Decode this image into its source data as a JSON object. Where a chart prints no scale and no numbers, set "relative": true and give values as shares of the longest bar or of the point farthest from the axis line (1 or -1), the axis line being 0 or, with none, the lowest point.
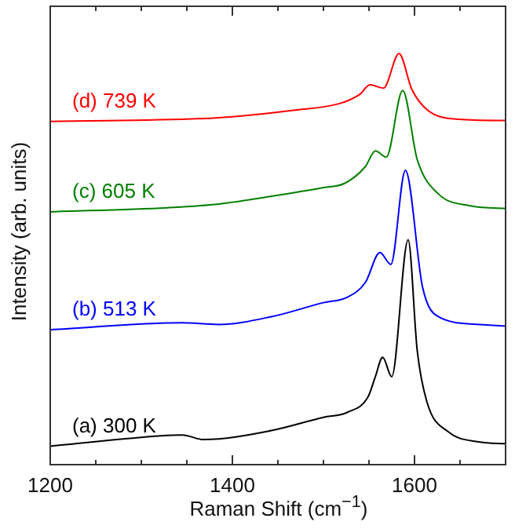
{
  "chart_data": {
    "type": "line",
    "relative": true,
    "xlabel": "Raman Shift (cm$^{−1}$)",
    "ylabel": "Intensity (arb. units)",
    "xlim": [
      1200,
      1700
    ],
    "xticks": [
      1200,
      {
        "value": 1250,
        "label": null
      },
      {
        "value": 1300,
        "label": null
      },
      {
        "value": 1350,
        "label": null
      },
      1400,
      {
        "value": 1450,
        "label": null
      },
      {
        "value": 1500,
        "label": null
      },
      {
        "value": 1550,
        "label": null
      },
      1600,
      {
        "value": 1650,
        "label": null
      },
      {
        "value": 1700,
        "label": null
      }
    ],
    "grid": false,
    "legend": false,
    "marker": "none",
    "line_style": "solid",
    "x": [
      1200,
      1322,
      1345,
      1368,
      1443,
      1500,
      1526,
      1549,
      1557,
      1565,
      1575,
      1593,
      1603,
      1614,
      1637,
      1672,
      1700
    ],
    "series": [
      {
        "name": "(a) 300 K",
        "color": "#000000",
        "values": [
          0.045,
          0.07,
          0.072,
          0.061,
          0.083,
          0.115,
          0.127,
          0.165,
          0.214,
          0.261,
          0.214,
          0.547,
          0.277,
          0.15,
          0.08,
          0.055,
          0.051
        ]
      },
      {
        "name": "(b) 513 K",
        "color": "#0000ff",
        "x": [
          1200,
          1345,
          1385,
          1443,
          1500,
          1526,
          1546,
          1562,
          1574,
          1590,
          1609,
          1626,
          1672,
          1700
        ],
        "values": [
          0.328,
          0.345,
          0.341,
          0.36,
          0.394,
          0.407,
          0.443,
          0.516,
          0.487,
          0.716,
          0.43,
          0.36,
          0.341,
          0.337
        ]
      },
      {
        "name": "(c) 605 K",
        "color": "#008000",
        "x": [
          1200,
          1328,
          1385,
          1443,
          1500,
          1523,
          1546,
          1557,
          1569,
          1587,
          1603,
          1626,
          1660,
          1700
        ],
        "values": [
          0.615,
          0.625,
          0.634,
          0.653,
          0.674,
          0.684,
          0.725,
          0.763,
          0.748,
          0.91,
          0.742,
          0.659,
          0.63,
          0.623
        ]
      },
      {
        "name": "(d) 739 K",
        "color": "#ff0000",
        "x": [
          1200,
          1385,
          1471,
          1517,
          1540,
          1551,
          1566,
          1583,
          1597,
          1614,
          1649,
          1700
        ],
        "values": [
          0.835,
          0.844,
          0.863,
          0.878,
          0.901,
          0.924,
          0.916,
          1,
          0.913,
          0.863,
          0.84,
          0.837
        ]
      }
    ]
  }
}
